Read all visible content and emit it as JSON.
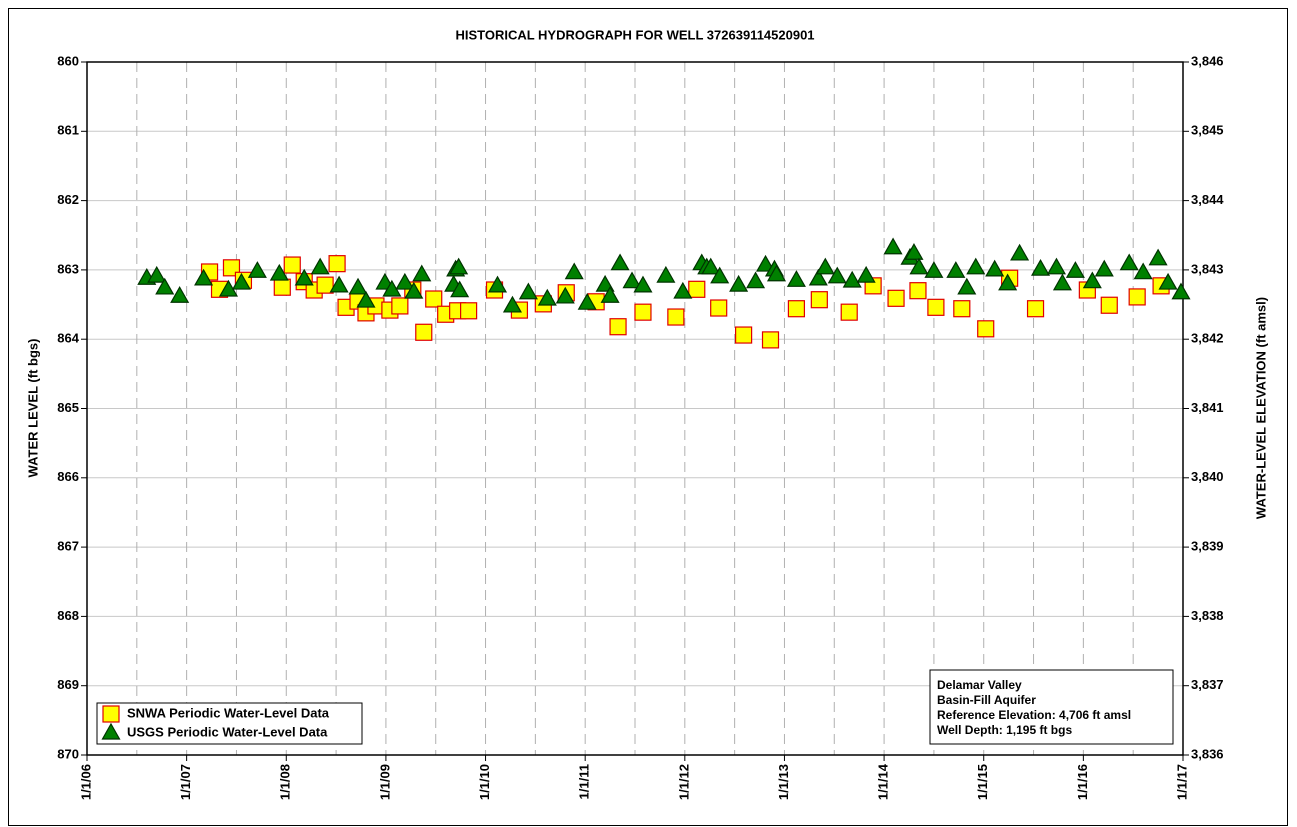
{
  "chart_data": {
    "type": "scatter",
    "title": "HISTORICAL HYDROGRAPH FOR WELL 372639114520901",
    "y_label": "WATER LEVEL (ft bgs)",
    "y2_label": "WATER-LEVEL ELEVATION (ft amsl)",
    "xlim": [
      2006,
      2017
    ],
    "xticks": [
      {
        "value": 2006,
        "label": "1/1/06"
      },
      {
        "value": 2007,
        "label": "1/1/07"
      },
      {
        "value": 2008,
        "label": "1/1/08"
      },
      {
        "value": 2009,
        "label": "1/1/09"
      },
      {
        "value": 2010,
        "label": "1/1/10"
      },
      {
        "value": 2011,
        "label": "1/1/11"
      },
      {
        "value": 2012,
        "label": "1/1/12"
      },
      {
        "value": 2013,
        "label": "1/1/13"
      },
      {
        "value": 2014,
        "label": "1/1/14"
      },
      {
        "value": 2015,
        "label": "1/1/15"
      },
      {
        "value": 2016,
        "label": "1/1/16"
      },
      {
        "value": 2017,
        "label": "1/1/17"
      }
    ],
    "x_minor_ticks": [
      2006.5,
      2007.5,
      2008.5,
      2009.5,
      2010.5,
      2011.5,
      2012.5,
      2013.5,
      2014.5,
      2015.5,
      2016.5
    ],
    "ylim": [
      860,
      870
    ],
    "y_inverted": true,
    "yticks": [
      860,
      861,
      862,
      863,
      864,
      865,
      866,
      867,
      868,
      869,
      870
    ],
    "y2lim": [
      3836,
      3846
    ],
    "y2ticks": [
      {
        "value": 3846,
        "label": "3,846"
      },
      {
        "value": 3845,
        "label": "3,845"
      },
      {
        "value": 3844,
        "label": "3,844"
      },
      {
        "value": 3843,
        "label": "3,843"
      },
      {
        "value": 3842,
        "label": "3,842"
      },
      {
        "value": 3841,
        "label": "3,841"
      },
      {
        "value": 3840,
        "label": "3,840"
      },
      {
        "value": 3839,
        "label": "3,839"
      },
      {
        "value": 3838,
        "label": "3,838"
      },
      {
        "value": 3837,
        "label": "3,837"
      },
      {
        "value": 3836,
        "label": "3,836"
      }
    ],
    "grid": true,
    "legend": "lower left",
    "series": [
      {
        "name": "SNWA Periodic Water-Level Data",
        "marker": "square",
        "color": "#ffff00",
        "edge_color": "#e00000",
        "x": [
          2007.23,
          2007.33,
          2007.45,
          2007.57,
          2007.96,
          2008.06,
          2008.18,
          2008.28,
          2008.39,
          2008.51,
          2008.6,
          2008.72,
          2008.8,
          2008.9,
          2009.04,
          2009.14,
          2009.27,
          2009.38,
          2009.48,
          2009.6,
          2009.72,
          2009.83,
          2010.09,
          2010.34,
          2010.58,
          2010.81,
          2011.11,
          2011.33,
          2011.58,
          2011.91,
          2012.12,
          2012.34,
          2012.59,
          2012.86,
          2013.12,
          2013.35,
          2013.65,
          2013.89,
          2014.12,
          2014.34,
          2014.52,
          2014.78,
          2015.02,
          2015.26,
          2015.52,
          2016.04,
          2016.26,
          2016.54,
          2016.78
        ],
        "values": [
          863.03,
          863.28,
          862.97,
          863.15,
          863.25,
          862.93,
          863.17,
          863.29,
          863.22,
          862.91,
          863.54,
          863.45,
          863.62,
          863.52,
          863.58,
          863.52,
          863.29,
          863.9,
          863.42,
          863.64,
          863.59,
          863.59,
          863.29,
          863.58,
          863.49,
          863.33,
          863.46,
          863.82,
          863.61,
          863.68,
          863.28,
          863.55,
          863.94,
          864.01,
          863.56,
          863.43,
          863.61,
          863.23,
          863.41,
          863.3,
          863.54,
          863.56,
          863.85,
          863.12,
          863.56,
          863.29,
          863.51,
          863.39,
          863.23
        ]
      },
      {
        "name": "USGS Periodic Water-Level Data",
        "marker": "triangle",
        "color": "#008000",
        "edge_color": "#003300",
        "x": [
          2006.6,
          2006.7,
          2006.78,
          2006.93,
          2007.17,
          2007.42,
          2007.55,
          2007.71,
          2007.93,
          2008.18,
          2008.34,
          2008.53,
          2008.72,
          2008.8,
          2008.99,
          2009.06,
          2009.19,
          2009.28,
          2009.36,
          2009.68,
          2009.7,
          2009.73,
          2009.74,
          2010.12,
          2010.27,
          2010.43,
          2010.62,
          2010.8,
          2010.89,
          2011.02,
          2011.2,
          2011.25,
          2011.35,
          2011.47,
          2011.58,
          2011.81,
          2011.98,
          2012.17,
          2012.22,
          2012.26,
          2012.35,
          2012.54,
          2012.71,
          2012.81,
          2012.9,
          2012.92,
          2013.12,
          2013.34,
          2013.41,
          2013.53,
          2013.68,
          2013.82,
          2014.09,
          2014.26,
          2014.3,
          2014.35,
          2014.5,
          2014.72,
          2014.83,
          2014.92,
          2015.11,
          2015.24,
          2015.36,
          2015.57,
          2015.73,
          2015.79,
          2015.92,
          2016.09,
          2016.21,
          2016.46,
          2016.6,
          2016.75,
          2016.85,
          2016.98
        ],
        "values": [
          863.12,
          863.09,
          863.26,
          863.38,
          863.13,
          863.29,
          863.19,
          863.02,
          863.06,
          863.13,
          862.97,
          863.23,
          863.26,
          863.45,
          863.19,
          863.29,
          863.19,
          863.32,
          863.07,
          863.22,
          863.0,
          862.97,
          863.3,
          863.23,
          863.52,
          863.33,
          863.42,
          863.39,
          863.04,
          863.48,
          863.22,
          863.38,
          862.91,
          863.17,
          863.23,
          863.09,
          863.32,
          862.91,
          862.97,
          862.97,
          863.1,
          863.22,
          863.17,
          862.93,
          863.0,
          863.07,
          863.15,
          863.13,
          862.97,
          863.1,
          863.16,
          863.09,
          862.68,
          862.83,
          862.76,
          862.97,
          863.02,
          863.02,
          863.26,
          862.97,
          863.0,
          863.2,
          862.77,
          862.99,
          862.97,
          863.2,
          863.02,
          863.17,
          863.0,
          862.91,
          863.04,
          862.84,
          863.19,
          863.33
        ]
      }
    ],
    "info_box": [
      "Delamar Valley",
      "Basin-Fill Aquifer",
      "Reference Elevation: 4,706 ft amsl",
      "Well Depth: 1,195 ft bgs"
    ]
  }
}
